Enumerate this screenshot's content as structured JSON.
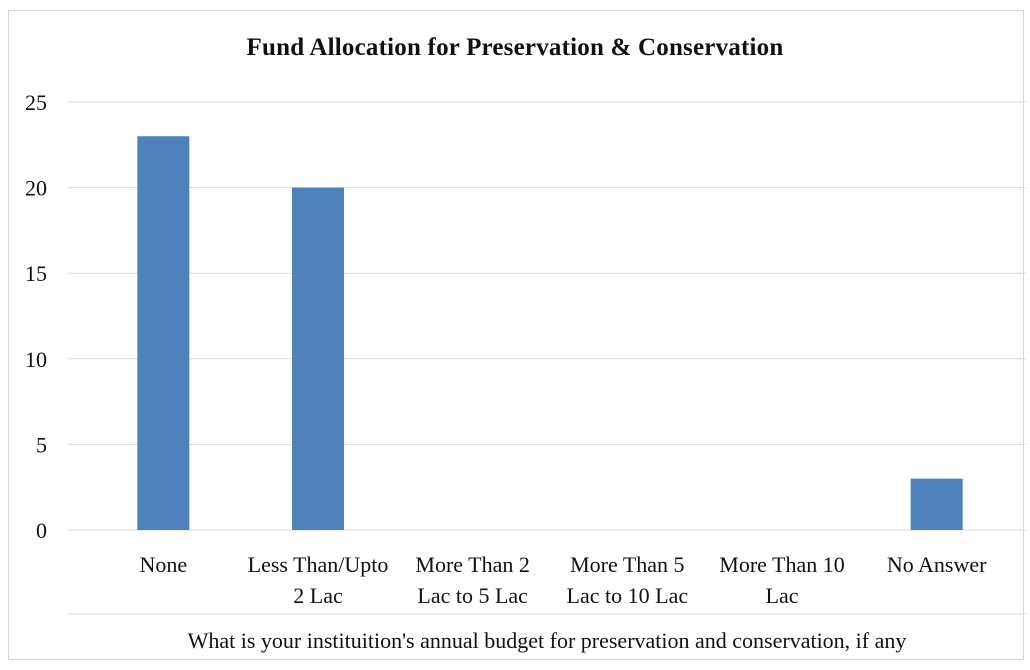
{
  "chart_data": {
    "type": "bar",
    "title": "Fund Allocation for Preservation & Conservation",
    "xlabel": "What is your instituition's annual budget for preservation and conservation, if any",
    "ylabel": "",
    "categories": [
      [
        "None"
      ],
      [
        "Less Than/Upto",
        "2 Lac"
      ],
      [
        "More Than 2",
        "Lac to 5 Lac"
      ],
      [
        "More Than 5",
        "Lac to 10 Lac"
      ],
      [
        "More Than 10",
        "Lac"
      ],
      [
        "No Answer"
      ]
    ],
    "values": [
      23,
      20,
      0,
      0,
      0,
      3
    ],
    "ylim": [
      0,
      25
    ],
    "yticks": [
      0,
      5,
      10,
      15,
      20,
      25
    ],
    "grid": true,
    "legend": "none",
    "bar_color": "#4f81bd",
    "grid_color": "#d9d9d9"
  }
}
